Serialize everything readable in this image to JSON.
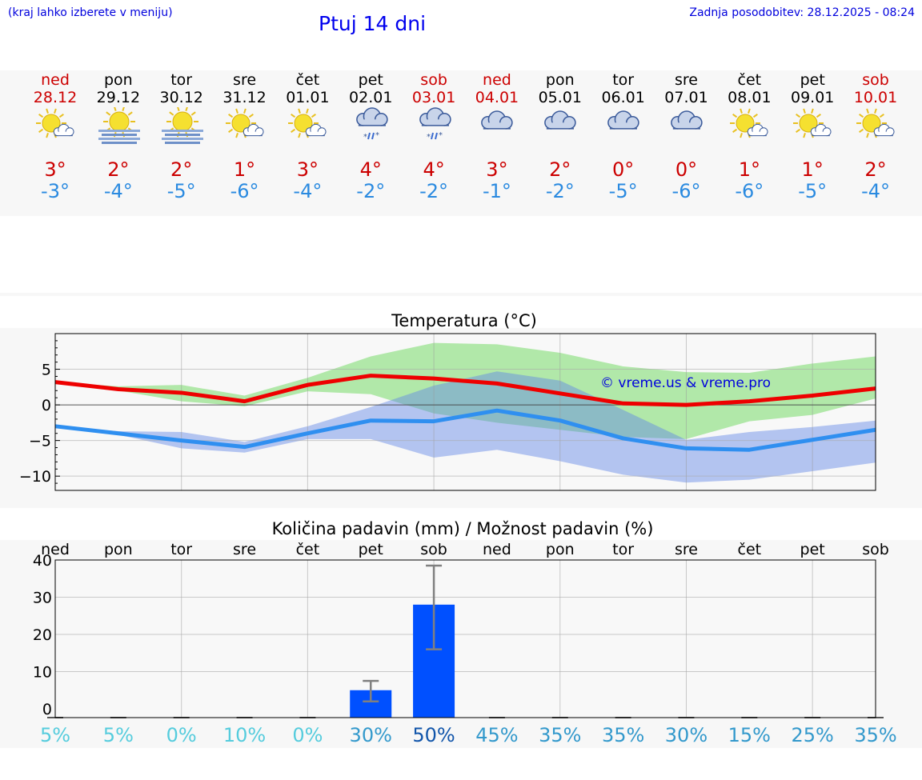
{
  "header": {
    "menu_hint": "(kraj lahko izberete v meniju)",
    "title": "Ptuj 14 dni",
    "updated": "Zadnja posodobitev: 28.12.2025 - 08:24"
  },
  "days": [
    {
      "name": "ned",
      "date": "28.12",
      "icon": "sun-cloud-icon",
      "max": "3°",
      "min": "-3°",
      "weekend": true
    },
    {
      "name": "pon",
      "date": "29.12",
      "icon": "fog-sun-icon",
      "max": "2°",
      "min": "-4°",
      "weekend": false
    },
    {
      "name": "tor",
      "date": "30.12",
      "icon": "fog-sun-icon",
      "max": "2°",
      "min": "-5°",
      "weekend": false
    },
    {
      "name": "sre",
      "date": "31.12",
      "icon": "sun-cloud-icon",
      "max": "1°",
      "min": "-6°",
      "weekend": false
    },
    {
      "name": "čet",
      "date": "01.01",
      "icon": "sun-cloud-icon",
      "max": "3°",
      "min": "-4°",
      "weekend": false
    },
    {
      "name": "pet",
      "date": "02.01",
      "icon": "sleet-cloud-icon",
      "max": "4°",
      "min": "-2°",
      "weekend": false
    },
    {
      "name": "sob",
      "date": "03.01",
      "icon": "sleet-cloud-icon",
      "max": "4°",
      "min": "-2°",
      "weekend": true
    },
    {
      "name": "ned",
      "date": "04.01",
      "icon": "overcast-icon",
      "max": "3°",
      "min": "-1°",
      "weekend": true
    },
    {
      "name": "pon",
      "date": "05.01",
      "icon": "overcast-icon",
      "max": "2°",
      "min": "-2°",
      "weekend": false
    },
    {
      "name": "tor",
      "date": "06.01",
      "icon": "overcast-icon",
      "max": "0°",
      "min": "-5°",
      "weekend": false
    },
    {
      "name": "sre",
      "date": "07.01",
      "icon": "overcast-icon",
      "max": "0°",
      "min": "-6°",
      "weekend": false
    },
    {
      "name": "čet",
      "date": "08.01",
      "icon": "sun-cloud-icon",
      "max": "1°",
      "min": "-6°",
      "weekend": false
    },
    {
      "name": "pet",
      "date": "09.01",
      "icon": "sun-cloud-icon",
      "max": "1°",
      "min": "-5°",
      "weekend": false
    },
    {
      "name": "sob",
      "date": "10.01",
      "icon": "sun-cloud-icon",
      "max": "2°",
      "min": "-4°",
      "weekend": true
    }
  ],
  "colors": {
    "max_line": "#ee0000",
    "min_line": "#2f8ff0",
    "max_band": "#a8e6a0",
    "min_band": "#a9c0f0",
    "bar": "#0050ff",
    "errbar": "#808080",
    "copyright": "#0000dd"
  },
  "chart_data": [
    {
      "type": "line",
      "title": "Temperatura (°C)",
      "watermark": "© vreme.us & vreme.pro",
      "x": [
        0,
        1,
        2,
        3,
        4,
        5,
        6,
        7,
        8,
        9,
        10,
        11,
        12,
        13
      ],
      "ylim": [
        -12,
        10
      ],
      "yticks": [
        -10,
        -5,
        0,
        5
      ],
      "ytick_labels": [
        "−10",
        "−5",
        "0",
        "5"
      ],
      "series": [
        {
          "name": "max",
          "values": [
            3.2,
            2.2,
            1.7,
            0.5,
            2.8,
            4.1,
            3.7,
            3.0,
            1.6,
            0.2,
            0.0,
            0.5,
            1.3,
            2.3
          ]
        },
        {
          "name": "min",
          "values": [
            -3.0,
            -4.0,
            -5.0,
            -5.9,
            -4.0,
            -2.2,
            -2.3,
            -0.8,
            -2.2,
            -4.7,
            -6.1,
            -6.3,
            -4.9,
            -3.5
          ]
        }
      ],
      "bands": [
        {
          "name": "max_range",
          "upper": [
            3.2,
            2.6,
            2.8,
            1.3,
            3.8,
            6.8,
            8.7,
            8.5,
            7.3,
            5.4,
            4.6,
            4.5,
            5.8,
            6.8
          ],
          "lower": [
            3.2,
            2.0,
            0.5,
            -0.2,
            1.9,
            1.5,
            -1.2,
            -2.5,
            -3.5,
            -4.5,
            -4.8,
            -2.3,
            -1.4,
            0.9
          ]
        },
        {
          "name": "min_range",
          "upper": [
            -3.0,
            -3.7,
            -3.8,
            -5.2,
            -3.0,
            -0.3,
            2.7,
            4.7,
            3.4,
            -0.7,
            -4.9,
            -3.8,
            -3.1,
            -2.2
          ],
          "lower": [
            -3.0,
            -4.2,
            -6.1,
            -6.7,
            -4.8,
            -4.8,
            -7.4,
            -6.3,
            -7.9,
            -9.8,
            -10.9,
            -10.5,
            -9.3,
            -8.1
          ]
        }
      ]
    },
    {
      "type": "bar",
      "title": "Količina padavin (mm) / Možnost padavin (%)",
      "categories": [
        "ned",
        "pon",
        "tor",
        "sre",
        "čet",
        "pet",
        "sob",
        "ned",
        "pon",
        "tor",
        "sre",
        "čet",
        "pet",
        "sob"
      ],
      "ylim": [
        0,
        40
      ],
      "yticks": [
        0,
        10,
        20,
        30,
        40
      ],
      "ytick_labels": [
        "0",
        "10",
        "20",
        "30",
        "40"
      ],
      "values": [
        0,
        0,
        0,
        0,
        0,
        5,
        28,
        0,
        0,
        0,
        0,
        0,
        0,
        0
      ],
      "error_low": [
        0,
        0,
        0,
        0,
        0,
        2,
        16,
        0,
        0,
        0,
        0,
        0,
        0,
        0
      ],
      "error_high": [
        0,
        0,
        0,
        0,
        0,
        7.5,
        38.5,
        0,
        0,
        0,
        0,
        0,
        0,
        0
      ],
      "probability": [
        "5%",
        "5%",
        "0%",
        "10%",
        "0%",
        "30%",
        "50%",
        "45%",
        "35%",
        "35%",
        "30%",
        "15%",
        "25%",
        "35%"
      ],
      "probability_colors": [
        "#55ccdd",
        "#55ccdd",
        "#55ccdd",
        "#55ccdd",
        "#55ccdd",
        "#3399cc",
        "#1155aa",
        "#3399cc",
        "#3399cc",
        "#3399cc",
        "#3399cc",
        "#3399cc",
        "#3399cc",
        "#3399cc"
      ]
    }
  ]
}
